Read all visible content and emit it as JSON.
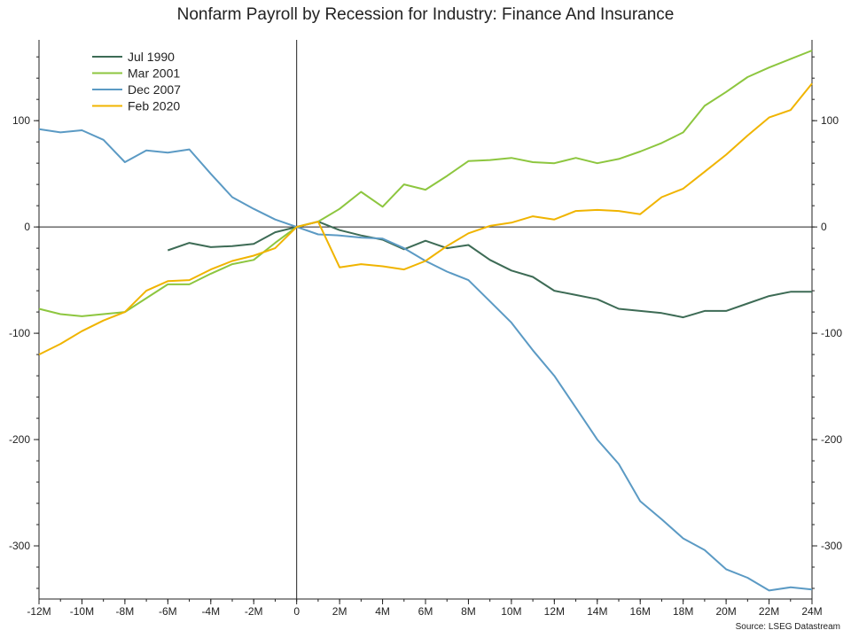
{
  "chart_data": {
    "type": "line",
    "title": "Nonfarm Payroll by Recession for Industry: Finance And Insurance",
    "source": "Source: LSEG Datastream",
    "xlabel": "",
    "ylabel": "",
    "x_ticks": [
      {
        "value": -12,
        "label": "-12M"
      },
      {
        "value": -10,
        "label": "-10M"
      },
      {
        "value": -8,
        "label": "-8M"
      },
      {
        "value": -6,
        "label": "-6M"
      },
      {
        "value": -4,
        "label": "-4M"
      },
      {
        "value": -2,
        "label": "-2M"
      },
      {
        "value": 0,
        "label": "0"
      },
      {
        "value": 2,
        "label": "2M"
      },
      {
        "value": 4,
        "label": "4M"
      },
      {
        "value": 6,
        "label": "6M"
      },
      {
        "value": 8,
        "label": "8M"
      },
      {
        "value": 10,
        "label": "10M"
      },
      {
        "value": 12,
        "label": "12M"
      },
      {
        "value": 14,
        "label": "14M"
      },
      {
        "value": 16,
        "label": "16M"
      },
      {
        "value": 18,
        "label": "18M"
      },
      {
        "value": 20,
        "label": "20M"
      },
      {
        "value": 22,
        "label": "22M"
      },
      {
        "value": 24,
        "label": "24M"
      }
    ],
    "y_ticks": [
      {
        "value": 100,
        "label": "100"
      },
      {
        "value": 0,
        "label": "0"
      },
      {
        "value": -100,
        "label": "-100"
      },
      {
        "value": -200,
        "label": "-200"
      },
      {
        "value": -300,
        "label": "-300"
      }
    ],
    "xlim": [
      -12,
      24
    ],
    "ylim": [
      -350,
      176
    ],
    "grid": false,
    "legend_position": "top-left",
    "series": [
      {
        "name": "Jul 1990",
        "color": "#3d6b55",
        "x": [
          -6,
          -5,
          -4,
          -3,
          -2,
          -1,
          0,
          1,
          2,
          3,
          4,
          5,
          6,
          7,
          8,
          9,
          10,
          11,
          12,
          13,
          14,
          15,
          16,
          17,
          18,
          19,
          20,
          21,
          22,
          23,
          24
        ],
        "y": [
          -22,
          -15,
          -19,
          -18,
          -16,
          -5,
          0,
          5,
          -3,
          -8,
          -12,
          -21,
          -13,
          -20,
          -17,
          -31,
          -41,
          -47,
          -60,
          -64,
          -68,
          -77,
          -79,
          -81,
          -85,
          -79,
          -79,
          -72,
          -65,
          -61,
          -61
        ]
      },
      {
        "name": "Mar 2001",
        "color": "#8dc63f",
        "x": [
          -12,
          -11,
          -10,
          -9,
          -8,
          -7,
          -6,
          -5,
          -4,
          -3,
          -2,
          -1,
          0,
          1,
          2,
          3,
          4,
          5,
          6,
          7,
          8,
          9,
          10,
          11,
          12,
          13,
          14,
          15,
          16,
          17,
          18,
          19,
          20,
          21,
          22,
          23,
          24
        ],
        "y": [
          -77,
          -82,
          -84,
          -82,
          -80,
          -67,
          -54,
          -54,
          -44,
          -35,
          -31,
          -15,
          0,
          5,
          17,
          33,
          19,
          40,
          35,
          48,
          62,
          63,
          65,
          61,
          60,
          65,
          60,
          64,
          71,
          79,
          89,
          114,
          127,
          141,
          150,
          158,
          166
        ]
      },
      {
        "name": "Dec 2007",
        "color": "#5b9ac4",
        "x": [
          -12,
          -11,
          -10,
          -9,
          -8,
          -7,
          -6,
          -5,
          -4,
          -3,
          -2,
          -1,
          0,
          1,
          2,
          3,
          4,
          5,
          6,
          7,
          8,
          9,
          10,
          11,
          12,
          13,
          14,
          15,
          16,
          17,
          18,
          19,
          20,
          21,
          22,
          23,
          24
        ],
        "y": [
          92,
          89,
          91,
          82,
          61,
          72,
          70,
          73,
          50,
          28,
          17,
          7,
          0,
          -7,
          -8,
          -10,
          -11,
          -20,
          -32,
          -42,
          -50,
          -70,
          -90,
          -116,
          -140,
          -170,
          -200,
          -223,
          -258,
          -275,
          -293,
          -304,
          -322,
          -330,
          -342,
          -339,
          -341
        ]
      },
      {
        "name": "Feb 2020",
        "color": "#f0b400",
        "x": [
          -12,
          -11,
          -10,
          -9,
          -8,
          -7,
          -6,
          -5,
          -4,
          -3,
          -2,
          -1,
          0,
          1,
          2,
          3,
          4,
          5,
          6,
          7,
          8,
          9,
          10,
          11,
          12,
          13,
          14,
          15,
          16,
          17,
          18,
          19,
          20,
          21,
          22,
          23,
          24
        ],
        "y": [
          -120,
          -110,
          -98,
          -88,
          -80,
          -60,
          -51,
          -50,
          -40,
          -32,
          -27,
          -20,
          0,
          5,
          -38,
          -35,
          -37,
          -40,
          -32,
          -18,
          -6,
          1,
          4,
          10,
          7,
          15,
          16,
          15,
          12,
          28,
          36,
          52,
          68,
          86,
          103,
          110,
          135
        ]
      }
    ]
  }
}
